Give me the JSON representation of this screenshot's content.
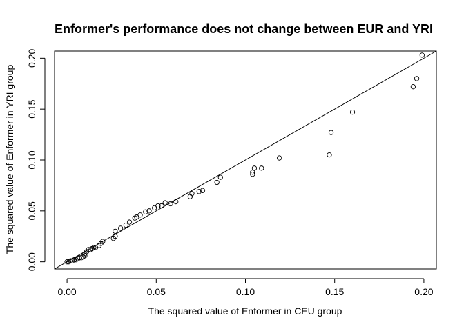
{
  "chart_data": {
    "type": "scatter",
    "title": "Enformer's performance does not change between EUR and YRI",
    "xlabel": "The squared value of Enformer in CEU group",
    "ylabel": "The squared value of Enformer in YRI group",
    "xlim": [
      -0.007,
      0.207
    ],
    "ylim": [
      -0.007,
      0.207
    ],
    "x_ticks": [
      0.0,
      0.05,
      0.1,
      0.15,
      0.2
    ],
    "x_tick_labels": [
      "0.00",
      "0.05",
      "0.10",
      "0.15",
      "0.20"
    ],
    "y_ticks": [
      0.0,
      0.05,
      0.1,
      0.15,
      0.2
    ],
    "y_tick_labels": [
      "0.00",
      "0.05",
      "0.10",
      "0.15",
      "0.20"
    ],
    "grid": false,
    "legend": "none",
    "reference_line": {
      "intercept": 0,
      "slope": 1
    },
    "marker": "open-circle",
    "points": [
      [
        0.0,
        0.0
      ],
      [
        0.001,
        0.0
      ],
      [
        0.002,
        0.001
      ],
      [
        0.003,
        0.001
      ],
      [
        0.004,
        0.002
      ],
      [
        0.005,
        0.002
      ],
      [
        0.006,
        0.003
      ],
      [
        0.007,
        0.004
      ],
      [
        0.008,
        0.004
      ],
      [
        0.009,
        0.005
      ],
      [
        0.01,
        0.006
      ],
      [
        0.01,
        0.008
      ],
      [
        0.011,
        0.01
      ],
      [
        0.012,
        0.012
      ],
      [
        0.013,
        0.012
      ],
      [
        0.014,
        0.013
      ],
      [
        0.015,
        0.014
      ],
      [
        0.016,
        0.014
      ],
      [
        0.018,
        0.016
      ],
      [
        0.019,
        0.018
      ],
      [
        0.02,
        0.02
      ],
      [
        0.026,
        0.023
      ],
      [
        0.027,
        0.025
      ],
      [
        0.027,
        0.03
      ],
      [
        0.03,
        0.033
      ],
      [
        0.033,
        0.036
      ],
      [
        0.035,
        0.039
      ],
      [
        0.038,
        0.043
      ],
      [
        0.039,
        0.044
      ],
      [
        0.041,
        0.046
      ],
      [
        0.044,
        0.049
      ],
      [
        0.046,
        0.05
      ],
      [
        0.049,
        0.053
      ],
      [
        0.051,
        0.055
      ],
      [
        0.053,
        0.055
      ],
      [
        0.055,
        0.058
      ],
      [
        0.058,
        0.057
      ],
      [
        0.061,
        0.059
      ],
      [
        0.069,
        0.064
      ],
      [
        0.07,
        0.067
      ],
      [
        0.074,
        0.069
      ],
      [
        0.076,
        0.07
      ],
      [
        0.084,
        0.078
      ],
      [
        0.086,
        0.083
      ],
      [
        0.104,
        0.086
      ],
      [
        0.104,
        0.088
      ],
      [
        0.105,
        0.092
      ],
      [
        0.109,
        0.092
      ],
      [
        0.119,
        0.102
      ],
      [
        0.147,
        0.105
      ],
      [
        0.148,
        0.127
      ],
      [
        0.16,
        0.147
      ],
      [
        0.194,
        0.172
      ],
      [
        0.196,
        0.18
      ],
      [
        0.199,
        0.203
      ]
    ]
  }
}
